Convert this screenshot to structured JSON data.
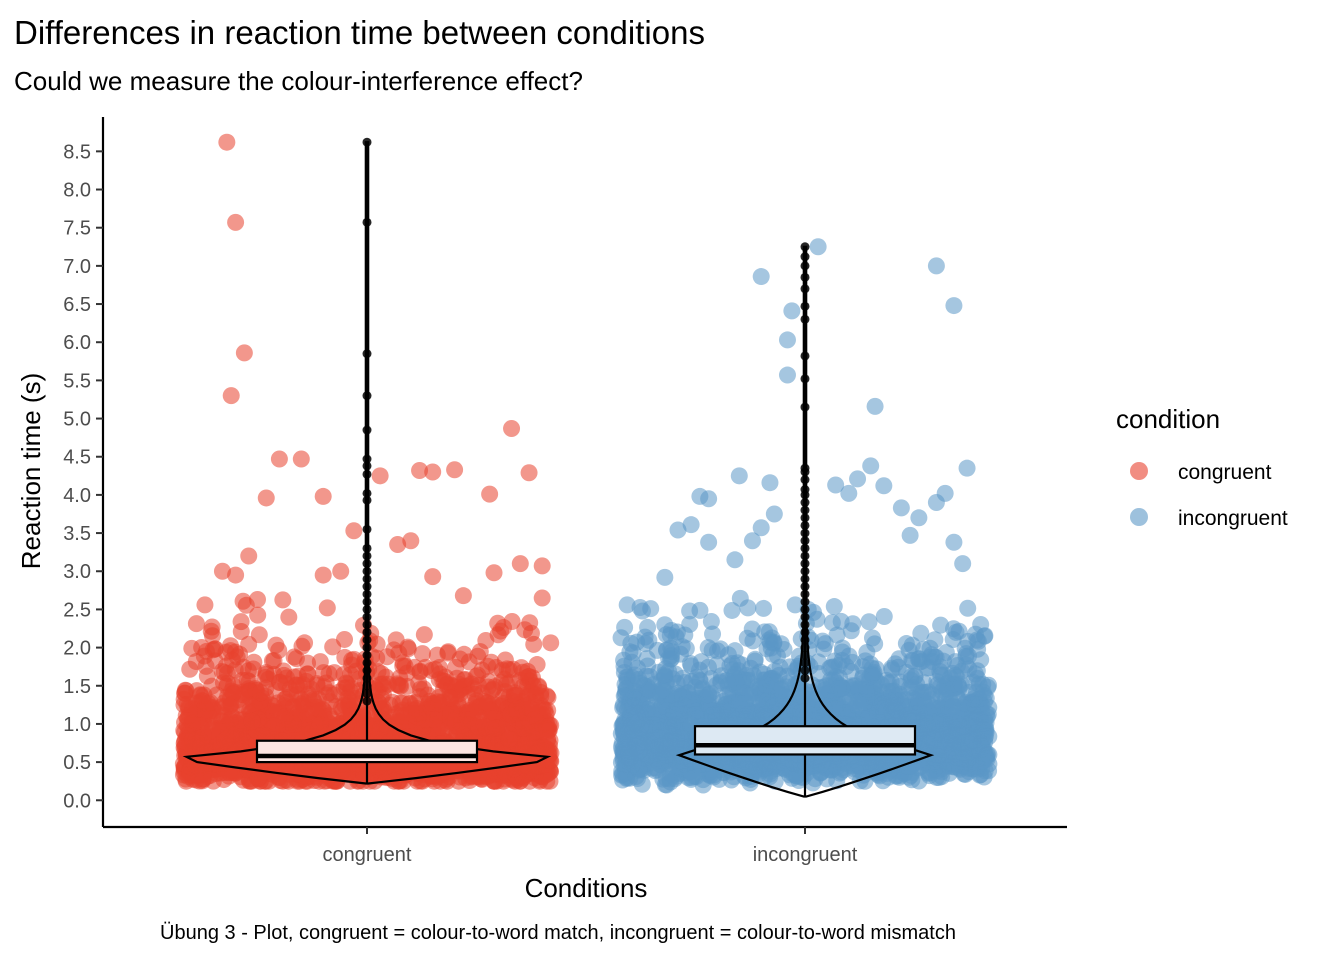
{
  "chart_data": {
    "type": "scatter",
    "title": "Differences in reaction time between conditions",
    "subtitle": "Could we measure the colour-interference effect?",
    "caption": "Übung 3 - Plot, congruent = colour-to-word match, incongruent = colour-to-word mismatch",
    "xlabel": "Conditions",
    "ylabel": "Reaction time (s)",
    "ylim": [
      -0.35,
      8.95
    ],
    "y_ticks": [
      "0.0",
      "0.5",
      "1.0",
      "1.5",
      "2.0",
      "2.5",
      "3.0",
      "3.5",
      "4.0",
      "4.5",
      "5.0",
      "5.5",
      "6.0",
      "6.5",
      "7.0",
      "7.5",
      "8.0",
      "8.5"
    ],
    "categories": [
      "congruent",
      "incongruent"
    ],
    "grid": false,
    "legend": {
      "title": "condition",
      "position": "right",
      "entries": [
        "congruent",
        "incongruent"
      ]
    },
    "colors": {
      "congruent": "#e8412e",
      "incongruent": "#5b97c6",
      "box_fill_congruent": "#fce4e1",
      "box_fill_incongruent": "#dde9f3"
    },
    "overlays": [
      "jittered points",
      "violin",
      "boxplot"
    ],
    "series": [
      {
        "name": "congruent",
        "box": {
          "min": 0.22,
          "q1": 0.5,
          "median": 0.58,
          "q3": 0.78,
          "whisker_high": 1.2
        },
        "outliers": [
          1.3,
          1.4,
          1.5,
          1.6,
          1.7,
          1.8,
          1.9,
          2.0,
          2.1,
          2.2,
          2.3,
          2.4,
          2.5,
          2.6,
          2.7,
          2.8,
          2.9,
          3.0,
          3.1,
          3.2,
          3.3,
          3.55,
          3.93,
          4.02,
          4.27,
          4.38,
          4.47,
          4.85,
          5.3,
          5.85,
          7.57,
          8.62
        ],
        "jitter_highlights": [
          {
            "x": -0.32,
            "y": 8.62
          },
          {
            "x": -0.3,
            "y": 7.57
          },
          {
            "x": -0.28,
            "y": 5.86
          },
          {
            "x": -0.31,
            "y": 5.3
          },
          {
            "x": -0.2,
            "y": 4.47
          },
          {
            "x": -0.15,
            "y": 4.47
          },
          {
            "x": -0.23,
            "y": 3.96
          },
          {
            "x": -0.1,
            "y": 3.98
          },
          {
            "x": 0.03,
            "y": 4.25
          },
          {
            "x": 0.12,
            "y": 4.32
          },
          {
            "x": 0.15,
            "y": 4.3
          },
          {
            "x": 0.2,
            "y": 4.33
          },
          {
            "x": 0.33,
            "y": 4.87
          },
          {
            "x": 0.28,
            "y": 4.01
          },
          {
            "x": 0.37,
            "y": 4.29
          },
          {
            "x": -0.3,
            "y": 2.95
          },
          {
            "x": -0.27,
            "y": 3.2
          },
          {
            "x": -0.33,
            "y": 3.0
          },
          {
            "x": -0.1,
            "y": 2.95
          },
          {
            "x": -0.03,
            "y": 3.53
          },
          {
            "x": 0.07,
            "y": 3.35
          },
          {
            "x": 0.15,
            "y": 2.93
          },
          {
            "x": 0.29,
            "y": 2.98
          },
          {
            "x": 0.35,
            "y": 3.1
          },
          {
            "x": 0.4,
            "y": 3.07
          },
          {
            "x": 0.4,
            "y": 2.65
          },
          {
            "x": -0.4,
            "y": 1.99
          },
          {
            "x": -0.37,
            "y": 2.56
          },
          {
            "x": -0.25,
            "y": 2.63
          },
          {
            "x": 0.1,
            "y": 3.4
          },
          {
            "x": -0.06,
            "y": 3.0
          },
          {
            "x": 0.22,
            "y": 2.68
          }
        ]
      },
      {
        "name": "incongruent",
        "box": {
          "min": 0.05,
          "q1": 0.6,
          "median": 0.72,
          "q3": 0.97,
          "whisker_high": 1.5
        },
        "outliers": [
          1.6,
          1.7,
          1.8,
          1.9,
          2.0,
          2.1,
          2.2,
          2.3,
          2.4,
          2.5,
          2.6,
          2.7,
          2.8,
          2.9,
          3.0,
          3.1,
          3.2,
          3.3,
          3.4,
          3.5,
          3.6,
          3.7,
          3.8,
          3.9,
          4.0,
          4.07,
          4.2,
          4.3,
          4.35,
          5.15,
          5.52,
          5.82,
          6.3,
          6.47,
          6.7,
          6.85,
          7.0,
          7.12,
          7.25
        ],
        "jitter_highlights": [
          {
            "x": 0.9,
            "y": 6.86
          },
          {
            "x": 0.85,
            "y": 4.25
          },
          {
            "x": 0.78,
            "y": 3.95
          },
          {
            "x": 0.76,
            "y": 3.98
          },
          {
            "x": 0.92,
            "y": 4.16
          },
          {
            "x": 0.96,
            "y": 6.03
          },
          {
            "x": 0.97,
            "y": 6.41
          },
          {
            "x": 0.96,
            "y": 5.57
          },
          {
            "x": 1.03,
            "y": 7.25
          },
          {
            "x": 1.07,
            "y": 4.13
          },
          {
            "x": 1.1,
            "y": 4.02
          },
          {
            "x": 1.12,
            "y": 4.21
          },
          {
            "x": 1.15,
            "y": 4.38
          },
          {
            "x": 1.16,
            "y": 5.16
          },
          {
            "x": 1.18,
            "y": 4.12
          },
          {
            "x": 1.22,
            "y": 3.83
          },
          {
            "x": 1.3,
            "y": 7.0
          },
          {
            "x": 1.34,
            "y": 6.48
          },
          {
            "x": 1.37,
            "y": 4.35
          },
          {
            "x": 1.32,
            "y": 4.02
          },
          {
            "x": 1.26,
            "y": 3.7
          },
          {
            "x": 1.3,
            "y": 3.9
          },
          {
            "x": 1.34,
            "y": 3.38
          },
          {
            "x": 0.74,
            "y": 3.61
          },
          {
            "x": 0.71,
            "y": 3.54
          },
          {
            "x": 0.68,
            "y": 2.92
          },
          {
            "x": 0.78,
            "y": 3.38
          },
          {
            "x": 0.84,
            "y": 3.15
          },
          {
            "x": 0.88,
            "y": 3.4
          },
          {
            "x": 0.9,
            "y": 3.57
          },
          {
            "x": 0.93,
            "y": 3.75
          },
          {
            "x": 1.24,
            "y": 3.47
          },
          {
            "x": 1.36,
            "y": 3.1
          }
        ]
      }
    ]
  }
}
